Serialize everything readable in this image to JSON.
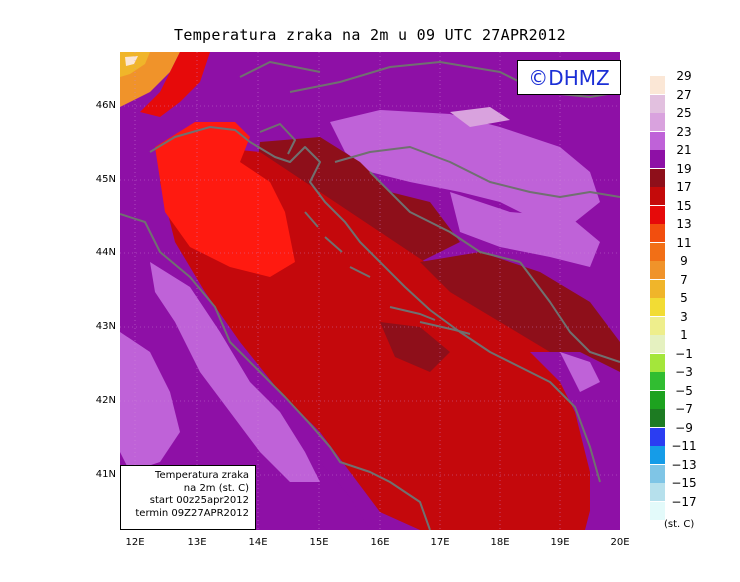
{
  "title": "Temperatura zraka na 2m u 09 UTC 27APR2012",
  "logo": "©DHMZ",
  "info_box": {
    "line1": "Temperatura zraka",
    "line2": "na 2m (st. C)",
    "line3": "start 00z25apr2012",
    "line4": "termin 09Z27APR2012"
  },
  "y_axis_labels": [
    "46N",
    "45N",
    "44N",
    "43N",
    "42N",
    "41N"
  ],
  "x_axis_labels": [
    "12E",
    "13E",
    "14E",
    "15E",
    "16E",
    "17E",
    "18E",
    "19E",
    "20E"
  ],
  "legend": {
    "labels": [
      "29",
      "27",
      "25",
      "23",
      "21",
      "19",
      "17",
      "15",
      "13",
      "11",
      "9",
      "7",
      "5",
      "3",
      "1",
      "−1",
      "−3",
      "−5",
      "−7",
      "−9",
      "−11",
      "−13",
      "−15",
      "−17"
    ],
    "colors": [
      "#fbe7d6",
      "#e2c0df",
      "#d9a2de",
      "#bf62d8",
      "#8e10a6",
      "#8e0f1a",
      "#c40a0a",
      "#e60a0a",
      "#f24e0e",
      "#f26f16",
      "#f0932a",
      "#f0b52a",
      "#f2dc34",
      "#eeee8c",
      "#e5f1c0",
      "#a4e63b",
      "#31bd31",
      "#1da21f",
      "#1d7b22",
      "#2b3df2",
      "#159ce8",
      "#7fc5e6",
      "#b6e0ec",
      "#e3fafa"
    ],
    "unit": "(st. C)"
  },
  "colors": {
    "land_coast": "#707070",
    "sea_warm": "#c4080c",
    "hot_core": "#ff1a10"
  }
}
